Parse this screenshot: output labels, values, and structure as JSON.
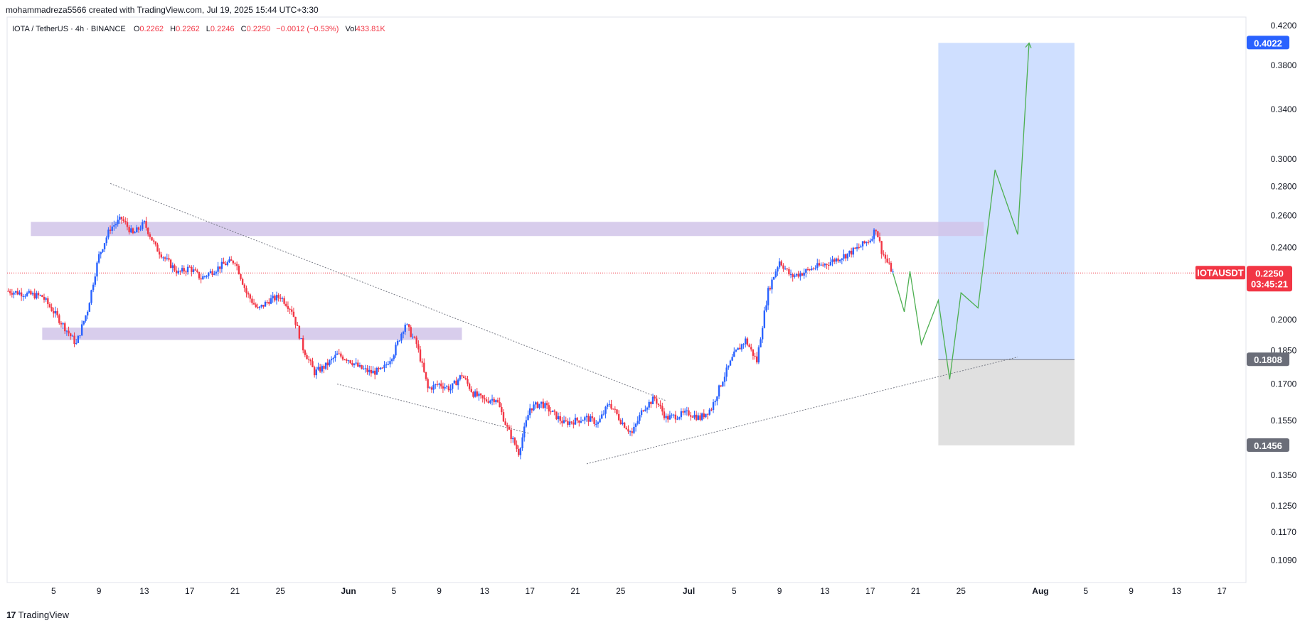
{
  "credit": "mohammadreza5566 created with TradingView.com, Jul 19, 2025 15:44 UTC+3:30",
  "legend": {
    "symbol": "IOTA / TetherUS · 4h · BINANCE",
    "o_label": "O",
    "open": "0.2262",
    "h_label": "H",
    "high": "0.2262",
    "l_label": "L",
    "low": "0.2246",
    "c_label": "C",
    "close": "0.2250",
    "change": "−0.0012 (−0.53%)",
    "vol_label": "Vol",
    "volume": "433.81K"
  },
  "footer": {
    "brand": "TradingView",
    "logo": "17"
  },
  "colors": {
    "up": "#2962ff",
    "down": "#f23645",
    "zone": "#d1c4e9",
    "target": "#cfdfff",
    "stop": "#e0e0e0",
    "path": "#4caf50",
    "badge_price": "#f23645",
    "badge_target": "#2962ff",
    "badge_gray": "#6a6d78"
  },
  "chart_data": {
    "type": "line",
    "y_scale": "log",
    "ylim": [
      0.103,
      0.427
    ],
    "y_ticks": [
      "0.4200",
      "0.3800",
      "0.3400",
      "0.3000",
      "0.2800",
      "0.2600",
      "0.2400",
      "0.2000",
      "0.1850",
      "0.1700",
      "0.1550",
      "0.1350",
      "0.1250",
      "0.1170",
      "0.1090"
    ],
    "x_ticks": [
      "5",
      "9",
      "13",
      "17",
      "21",
      "25",
      "Jun",
      "5",
      "9",
      "13",
      "17",
      "21",
      "25",
      "Jul",
      "5",
      "9",
      "13",
      "17",
      "21",
      "25",
      "Aug",
      "5",
      "9",
      "13",
      "17"
    ],
    "x_tick_days": [
      -26,
      -22,
      -18,
      -14,
      -10,
      -6,
      0,
      4,
      8,
      12,
      16,
      20,
      24,
      30,
      34,
      38,
      42,
      46,
      50,
      54,
      61,
      65,
      69,
      73,
      77
    ],
    "price_path": {
      "days": [
        -30,
        -27,
        -24,
        -23,
        -22,
        -21,
        -20,
        -19,
        -18,
        -17,
        -16,
        -15,
        -14,
        -13,
        -12,
        -11,
        -10,
        -9,
        -8,
        -7,
        -6,
        -5,
        -4,
        -3,
        -2,
        -1,
        0,
        1,
        2,
        3,
        4,
        5,
        6,
        7,
        8,
        9,
        10,
        11,
        12,
        13,
        14,
        15,
        16,
        17,
        18,
        19,
        20,
        21,
        22,
        23,
        24,
        25,
        26,
        27,
        28,
        29,
        30,
        31,
        32,
        33,
        34,
        35,
        36,
        37,
        38,
        39,
        40,
        41,
        42,
        43,
        44,
        45,
        46,
        46.5,
        47,
        47.5,
        48
      ],
      "values": [
        0.215,
        0.212,
        0.188,
        0.205,
        0.235,
        0.252,
        0.258,
        0.248,
        0.255,
        0.24,
        0.232,
        0.225,
        0.228,
        0.222,
        0.226,
        0.23,
        0.232,
        0.214,
        0.205,
        0.21,
        0.212,
        0.205,
        0.186,
        0.175,
        0.178,
        0.183,
        0.181,
        0.177,
        0.175,
        0.176,
        0.184,
        0.198,
        0.188,
        0.168,
        0.17,
        0.168,
        0.174,
        0.166,
        0.163,
        0.164,
        0.152,
        0.143,
        0.16,
        0.162,
        0.158,
        0.154,
        0.155,
        0.156,
        0.154,
        0.162,
        0.155,
        0.15,
        0.16,
        0.164,
        0.156,
        0.157,
        0.158,
        0.156,
        0.16,
        0.172,
        0.183,
        0.19,
        0.18,
        0.215,
        0.232,
        0.223,
        0.225,
        0.228,
        0.23,
        0.233,
        0.236,
        0.24,
        0.245,
        0.252,
        0.238,
        0.231,
        0.225
      ]
    },
    "projection": {
      "days": [
        48,
        49,
        49.5,
        50.5,
        52,
        53,
        54,
        55.5,
        57,
        59,
        60,
        61
      ],
      "values": [
        0.225,
        0.204,
        0.226,
        0.188,
        0.21,
        0.172,
        0.214,
        0.206,
        0.292,
        0.248,
        0.402,
        0.402
      ]
    },
    "zones": [
      {
        "from_day": -28,
        "to_day": 56,
        "low": 0.247,
        "high": 0.256
      },
      {
        "from_day": -27,
        "to_day": 10,
        "low": 0.19,
        "high": 0.196
      }
    ],
    "trendlines": [
      {
        "from_day": -21,
        "from_value": 0.282,
        "to_day": 28,
        "to_value": 0.163
      },
      {
        "from_day": -1,
        "from_value": 0.17,
        "to_day": 16,
        "to_value": 0.15
      },
      {
        "from_day": 21,
        "from_value": 0.139,
        "to_day": 59,
        "to_value": 0.182
      }
    ],
    "position": {
      "from_day": 52,
      "to_day": 64,
      "entry": 0.1808,
      "target": 0.4022,
      "stop": 0.1456
    },
    "current_price": 0.225,
    "labels": {
      "target": "0.4022",
      "entry": "0.1808",
      "stop": "0.1456",
      "symbol": "IOTAUSDT",
      "price": "0.2250",
      "countdown": "03:45:21"
    },
    "grid": false
  }
}
